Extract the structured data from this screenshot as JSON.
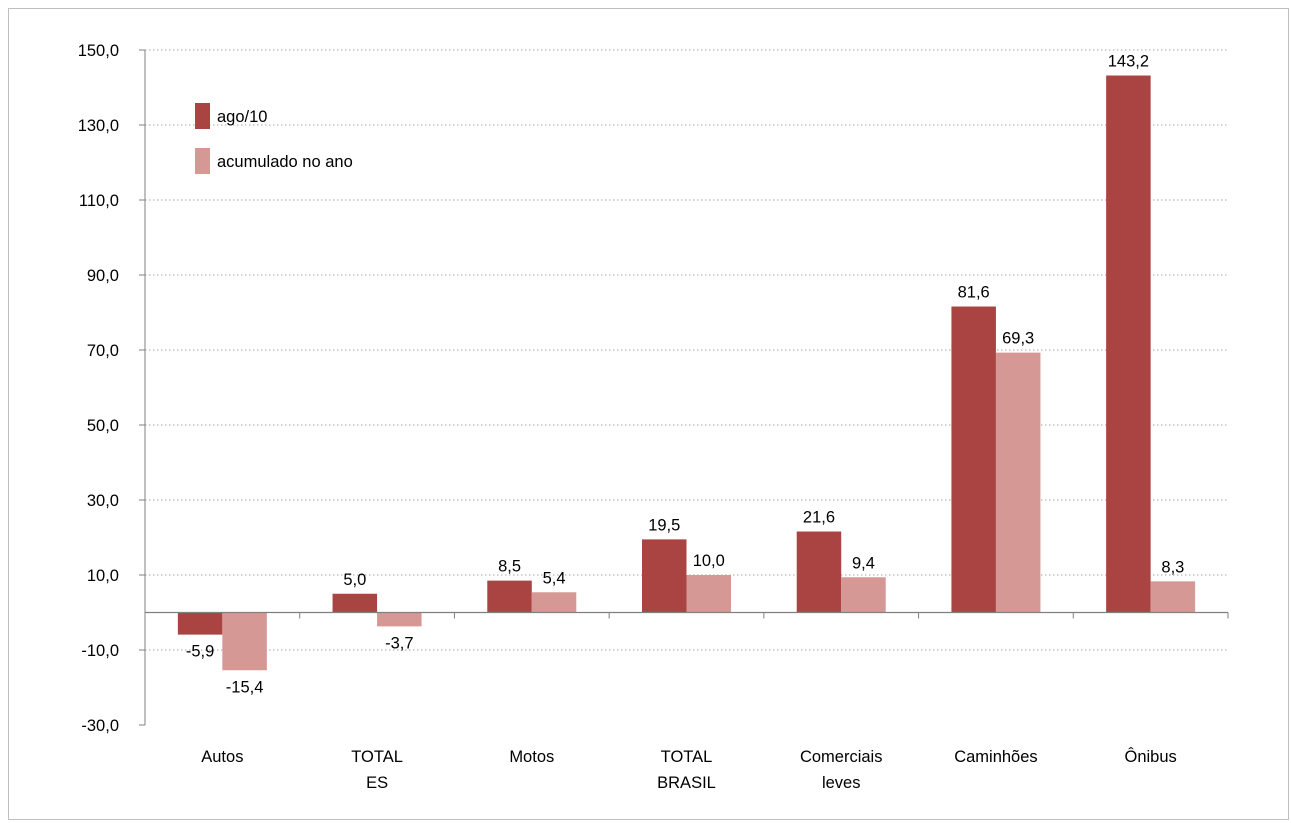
{
  "chart_data": {
    "type": "bar",
    "categories": [
      [
        "Autos"
      ],
      [
        "TOTAL",
        "ES"
      ],
      [
        "Motos"
      ],
      [
        "TOTAL",
        "BRASIL"
      ],
      [
        "Comerciais",
        "leves"
      ],
      [
        "Caminhões"
      ],
      [
        "Ônibus"
      ]
    ],
    "series": [
      {
        "name": "ago/10",
        "color": "#a94442",
        "values": [
          -5.9,
          5.0,
          8.5,
          19.5,
          21.6,
          81.6,
          143.2
        ]
      },
      {
        "name": "acumulado no ano",
        "color": "#d59895",
        "values": [
          -15.4,
          -3.7,
          5.4,
          10.0,
          9.4,
          69.3,
          8.3
        ]
      }
    ],
    "value_labels": [
      [
        "-5,9",
        "5,0",
        "8,5",
        "19,5",
        "21,6",
        "81,6",
        "143,2"
      ],
      [
        "-15,4",
        "-3,7",
        "5,4",
        "10,0",
        "9,4",
        "69,3",
        "8,3"
      ]
    ],
    "yticks": [
      -30,
      -10,
      10,
      30,
      50,
      70,
      90,
      110,
      130,
      150
    ],
    "ytick_labels": [
      "-30,0",
      "-10,0",
      "10,0",
      "30,0",
      "50,0",
      "70,0",
      "90,0",
      "110,0",
      "130,0",
      "150,0"
    ],
    "ylim": [
      -30,
      150
    ],
    "grid": true,
    "legend_position": "top-left"
  }
}
